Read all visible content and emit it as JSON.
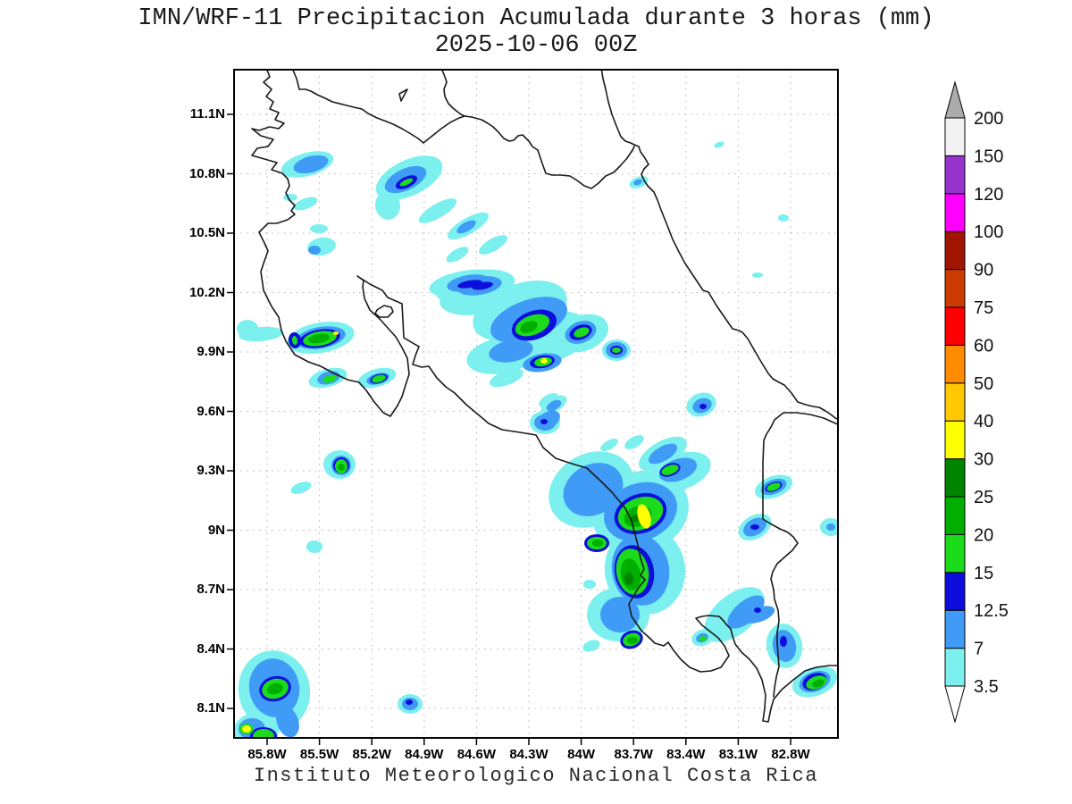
{
  "header": {
    "title_line1": "IMN/WRF-11 Precipitacion Acumulada durante 3 horas (mm)",
    "title_line2": "2025-10-06 00Z"
  },
  "footer": {
    "caption": "Instituto Meteorologico Nacional Costa Rica"
  },
  "axes": {
    "lat_labels_top_to_bottom": [
      "11.1N",
      "10.8N",
      "10.5N",
      "10.2N",
      "9.9N",
      "9.6N",
      "9.3N",
      "9N",
      "8.7N",
      "8.4N",
      "8.1N"
    ],
    "lon_labels_left_to_right": [
      "85.8W",
      "85.5W",
      "85.2W",
      "84.9W",
      "84.6W",
      "84.3W",
      "84W",
      "83.7W",
      "83.4W",
      "83.1W",
      "82.8W"
    ]
  },
  "colorbar": {
    "boundary_labels_bottom_to_top": [
      "3.5",
      "7",
      "12.5",
      "15",
      "20",
      "25",
      "30",
      "40",
      "50",
      "60",
      "75",
      "90",
      "100",
      "120",
      "150",
      "200"
    ],
    "over_arrow_color": "#ABABAB",
    "under_arrow_color": "#FFFFFF"
  },
  "palette": {
    "3.5": "#7CEFEF",
    "7": "#3F9BF5",
    "12.5": "#0D0DDC",
    "15": "#1BDB1B",
    "20": "#00AE00",
    "25": "#008400",
    "30": "#FFFF00",
    "40": "#FFC800",
    "50": "#FF8C00",
    "60": "#FF0000",
    "75": "#CC3C00",
    "90": "#A01400",
    "100": "#FF00FF",
    "120": "#9633CC",
    "150": "#F2F2F2"
  }
}
